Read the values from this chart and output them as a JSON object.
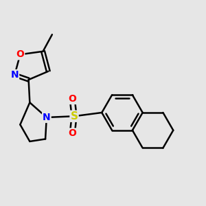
{
  "bg_color": "#e6e6e6",
  "bond_color": "#000000",
  "bond_width": 1.8,
  "atom_colors": {
    "O": "#ff0000",
    "N": "#0000ff",
    "S": "#cccc00",
    "C": "#000000"
  },
  "font_size": 10,
  "fig_size": [
    3.0,
    3.0
  ],
  "dpi": 100
}
